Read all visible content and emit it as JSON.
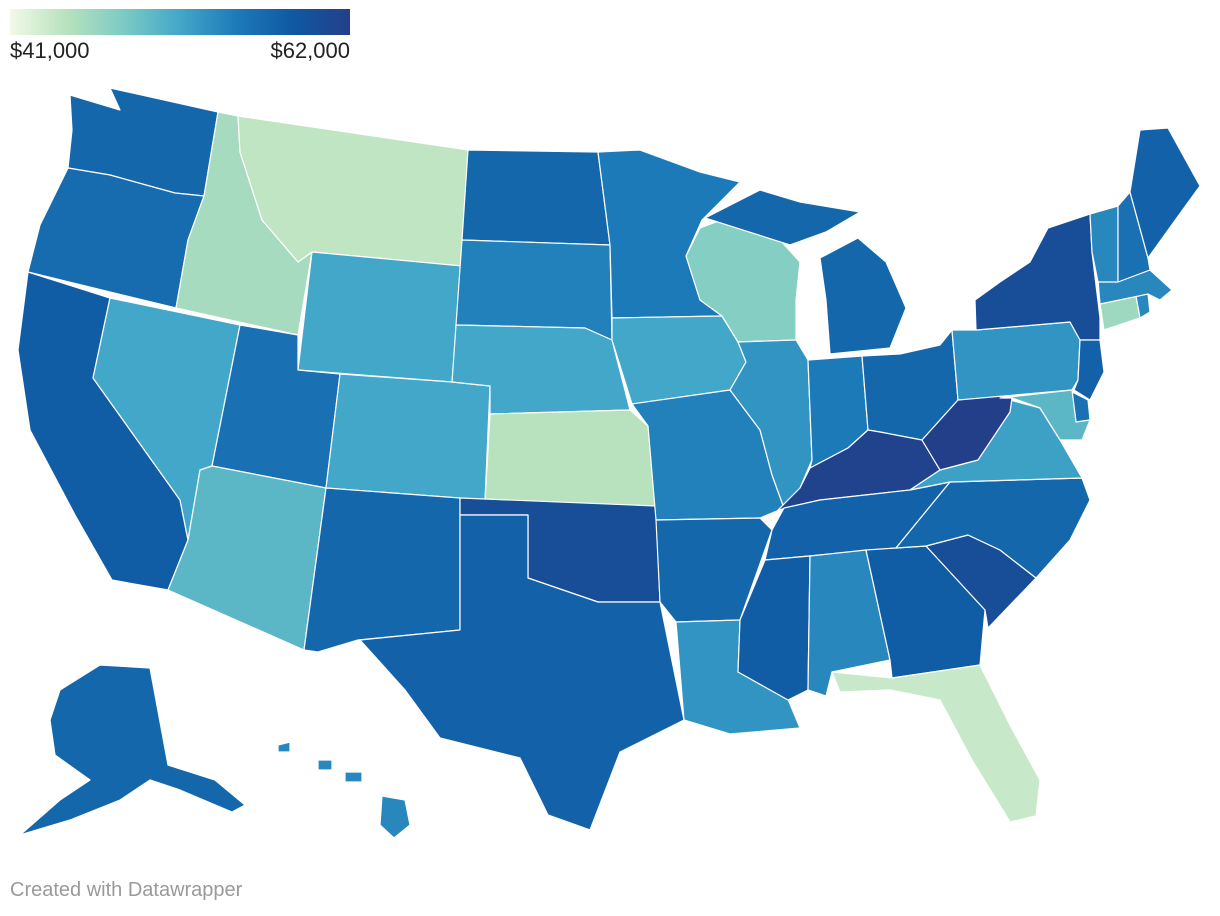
{
  "legend": {
    "min_label": "$41,000",
    "max_label": "$62,000",
    "min_value": 41000,
    "max_value": 62000,
    "gradient": [
      "#f2f9e8",
      "#b7e2bd",
      "#7ccbc4",
      "#42a7c8",
      "#1d7ab9",
      "#0f58a2",
      "#243f8a"
    ]
  },
  "credit": "Created with Datawrapper",
  "states": [
    {
      "id": "WA",
      "value": 57000
    },
    {
      "id": "OR",
      "value": 56500
    },
    {
      "id": "CA",
      "value": 58000
    },
    {
      "id": "NV",
      "value": 51500
    },
    {
      "id": "ID",
      "value": 45500
    },
    {
      "id": "MT",
      "value": 44000
    },
    {
      "id": "WY",
      "value": 51500
    },
    {
      "id": "UT",
      "value": 56000
    },
    {
      "id": "AZ",
      "value": 50000
    },
    {
      "id": "CO",
      "value": 51500
    },
    {
      "id": "NM",
      "value": 57000
    },
    {
      "id": "ND",
      "value": 57000
    },
    {
      "id": "SD",
      "value": 54500
    },
    {
      "id": "NE",
      "value": 51500
    },
    {
      "id": "KS",
      "value": 44500
    },
    {
      "id": "OK",
      "value": 60000
    },
    {
      "id": "TX",
      "value": 57500
    },
    {
      "id": "MN",
      "value": 55000
    },
    {
      "id": "IA",
      "value": 51500
    },
    {
      "id": "MO",
      "value": 54500
    },
    {
      "id": "AR",
      "value": 57000
    },
    {
      "id": "LA",
      "value": 53000
    },
    {
      "id": "WI",
      "value": 47500
    },
    {
      "id": "IL",
      "value": 53000
    },
    {
      "id": "MI",
      "value": 57000
    },
    {
      "id": "IN",
      "value": 55000
    },
    {
      "id": "OH",
      "value": 57000
    },
    {
      "id": "KY",
      "value": 61500
    },
    {
      "id": "TN",
      "value": 57500
    },
    {
      "id": "MS",
      "value": 58000
    },
    {
      "id": "AL",
      "value": 54000
    },
    {
      "id": "GA",
      "value": 58000
    },
    {
      "id": "FL",
      "value": 43500
    },
    {
      "id": "SC",
      "value": 60000
    },
    {
      "id": "NC",
      "value": 57000
    },
    {
      "id": "VA",
      "value": 52000
    },
    {
      "id": "WV",
      "value": 62000
    },
    {
      "id": "PA",
      "value": 53000
    },
    {
      "id": "NY",
      "value": 60000
    },
    {
      "id": "VT",
      "value": 54000
    },
    {
      "id": "NH",
      "value": 56000
    },
    {
      "id": "ME",
      "value": 57500
    },
    {
      "id": "MA",
      "value": 54000
    },
    {
      "id": "CT",
      "value": 46000
    },
    {
      "id": "RI",
      "value": 54000
    },
    {
      "id": "NJ",
      "value": 57500
    },
    {
      "id": "DE",
      "value": 56000
    },
    {
      "id": "MD",
      "value": 50000
    },
    {
      "id": "AK",
      "value": 57000
    },
    {
      "id": "HI",
      "value": 54000
    }
  ]
}
